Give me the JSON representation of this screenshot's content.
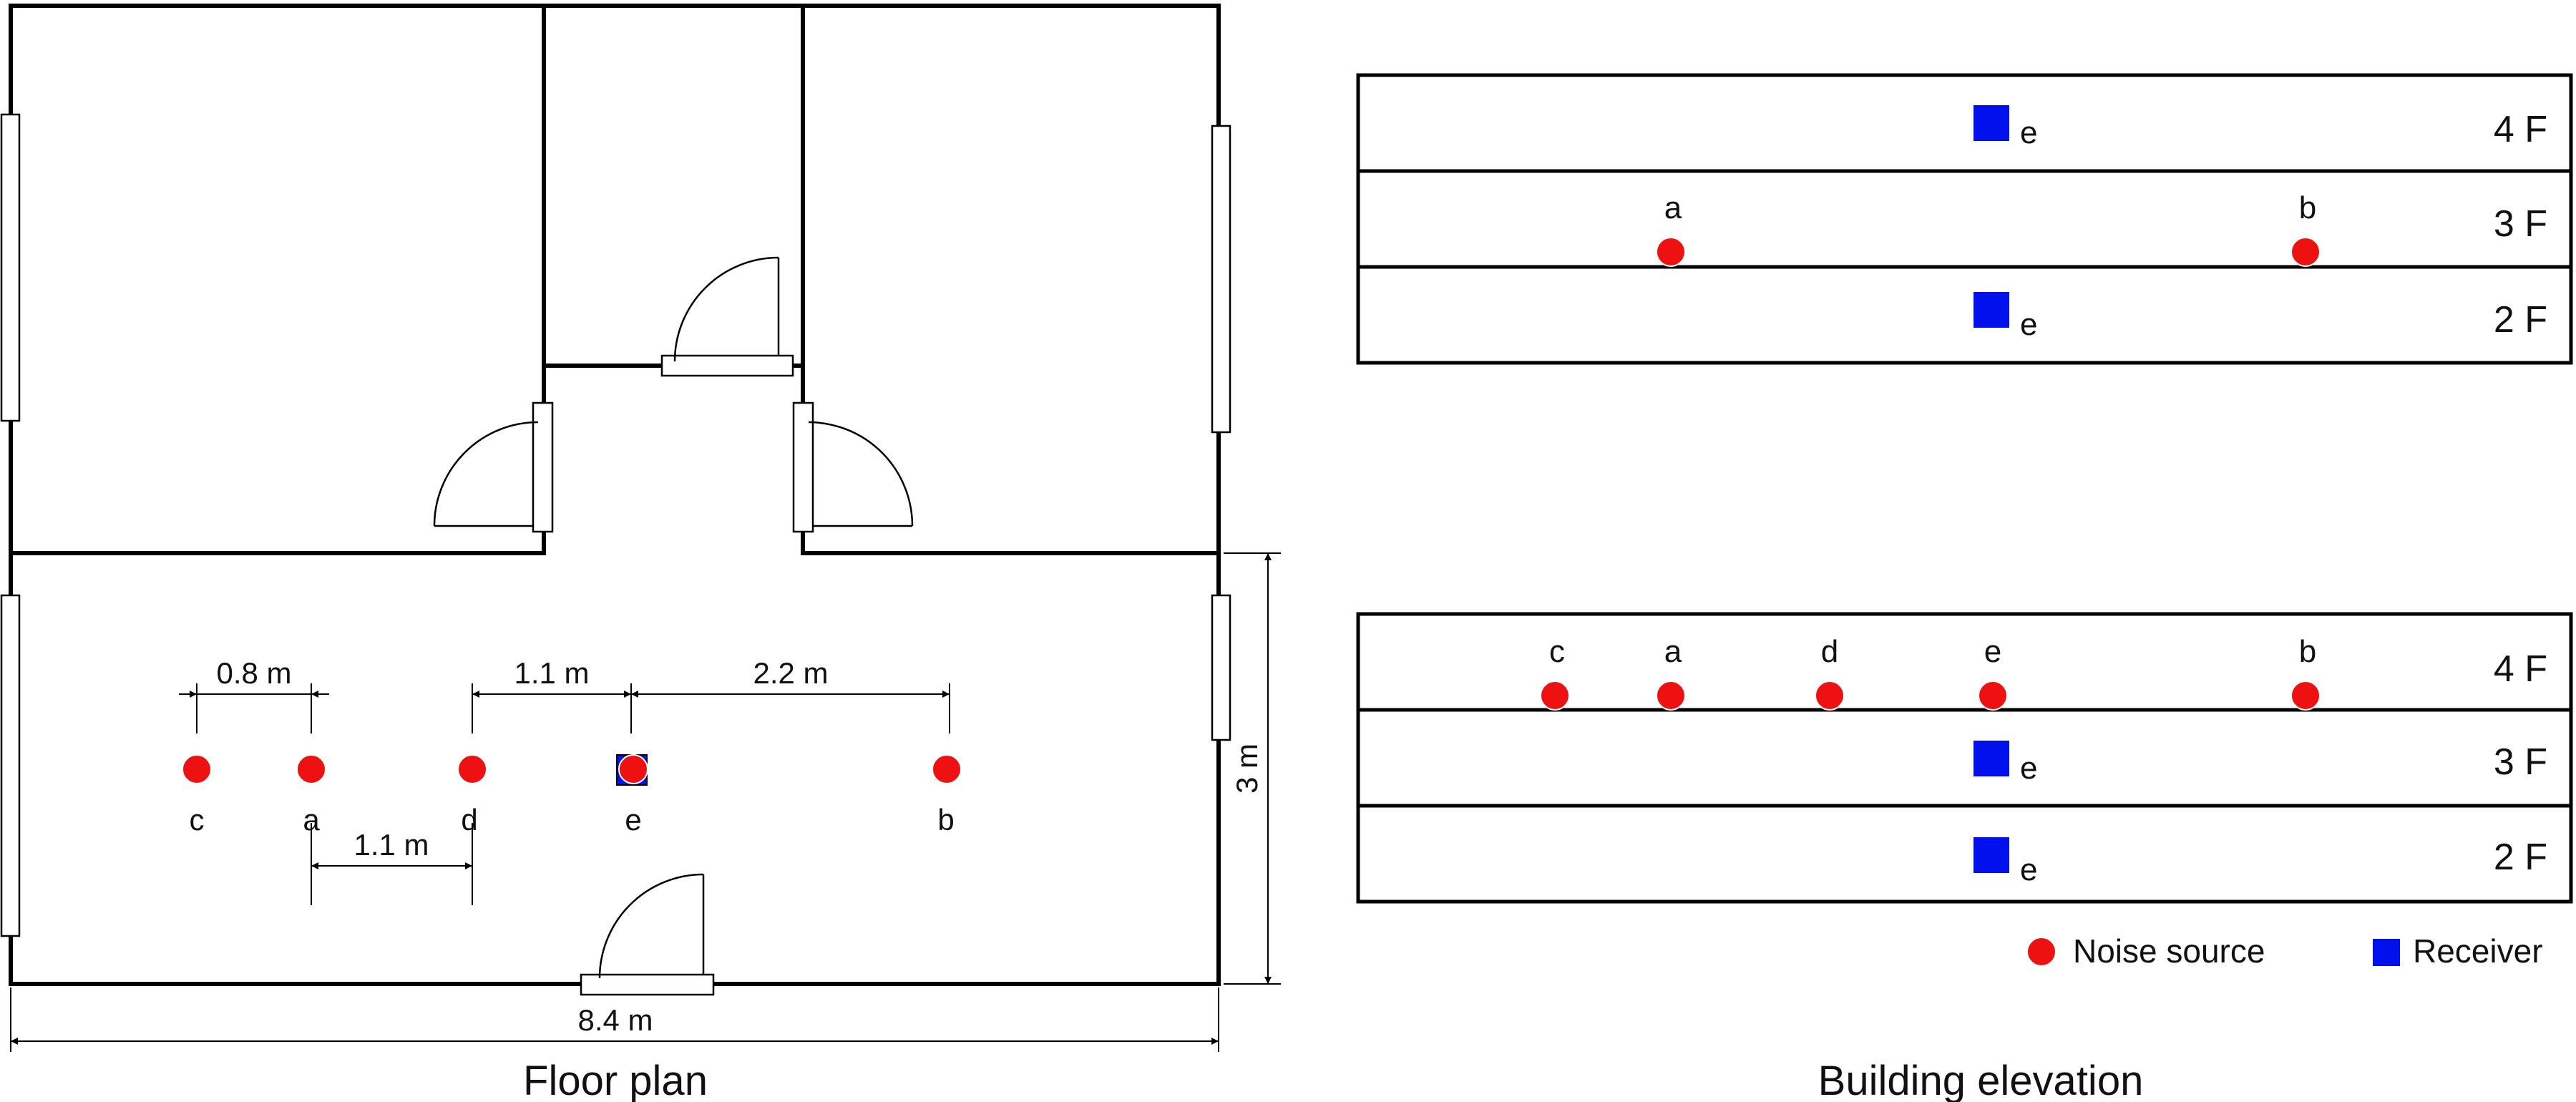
{
  "floor_plan": {
    "caption": "Floor plan",
    "sources": [
      {
        "id": "c",
        "label": "c"
      },
      {
        "id": "a",
        "label": "a"
      },
      {
        "id": "d",
        "label": "d"
      },
      {
        "id": "e",
        "label": "e"
      },
      {
        "id": "b",
        "label": "b"
      }
    ],
    "dimensions": {
      "c_to_a": "0.8 m",
      "d_to_e": "1.1 m",
      "e_to_b": "2.2 m",
      "a_to_d": "1.1 m",
      "width": "8.4 m",
      "depth": "3 m"
    }
  },
  "building_elevation": {
    "caption": "Building elevation",
    "upper": {
      "floors": [
        "4 F",
        "3 F",
        "2 F"
      ],
      "source_labels": [
        "a",
        "b"
      ],
      "receiver_labels": [
        "e",
        "e"
      ]
    },
    "lower": {
      "floors": [
        "4 F",
        "3 F",
        "2 F"
      ],
      "source_labels": [
        "c",
        "a",
        "d",
        "e",
        "b"
      ],
      "receiver_labels": [
        "e",
        "e"
      ]
    }
  },
  "legend": {
    "noise_source": "Noise source",
    "receiver": "Receiver"
  },
  "colors": {
    "source": "#ee1111",
    "receiver": "#0011ee",
    "line": "#000000"
  }
}
